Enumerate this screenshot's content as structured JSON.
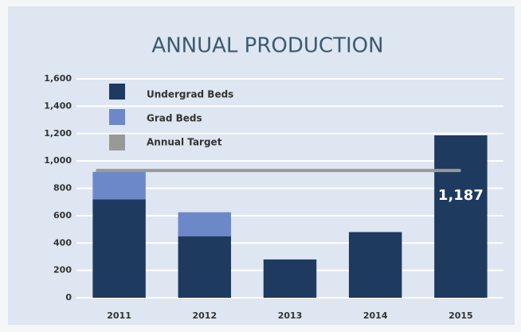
{
  "chart_data": {
    "type": "stacked_bar",
    "title": "ANNUAL PRODUCTION",
    "categories": [
      "2011",
      "2012",
      "2013",
      "2014",
      "2015"
    ],
    "series": [
      {
        "name": "Undergrad Beds",
        "color": "#1f3a5f",
        "values": [
          720,
          450,
          280,
          480,
          1187
        ],
        "value_labels": [
          null,
          null,
          null,
          null,
          "1,187"
        ]
      },
      {
        "name": "Grad Beds",
        "color": "#6c88c8",
        "values": [
          200,
          175,
          null,
          null,
          null
        ]
      }
    ],
    "target": {
      "name": "Annual Target",
      "color": "#999999",
      "value": 930
    },
    "ylim": [
      0,
      1600
    ],
    "yticks": [
      0,
      200,
      400,
      600,
      800,
      {
        "value": 1000,
        "label": "1,000"
      },
      {
        "value": 1200,
        "label": "1,200"
      },
      {
        "value": 1400,
        "label": "1,400"
      },
      {
        "value": 1600,
        "label": "1,600"
      }
    ],
    "grid": true,
    "legend": "top-left"
  }
}
